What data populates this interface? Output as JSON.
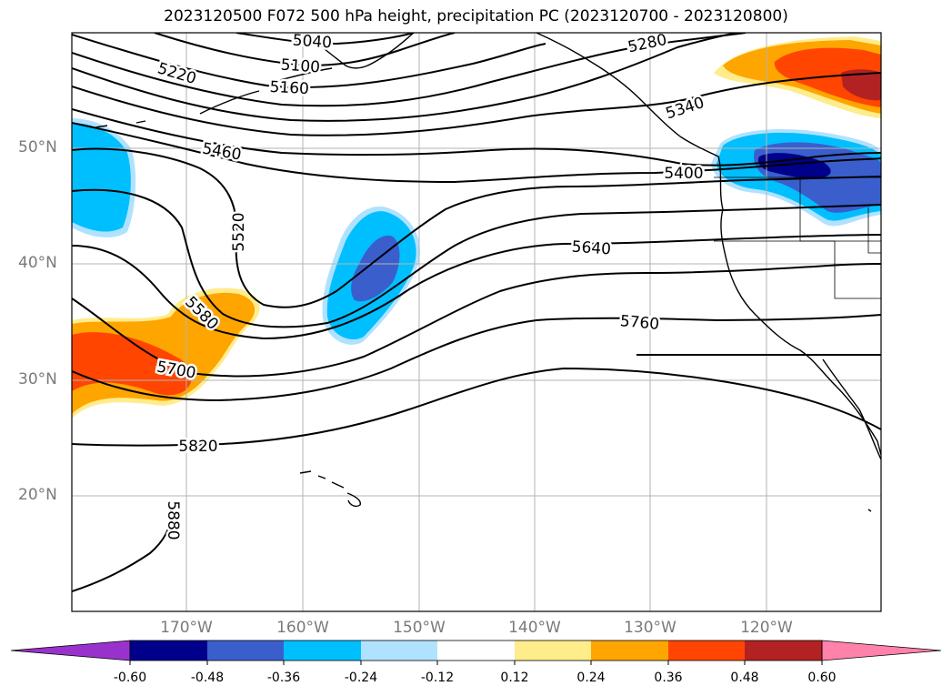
{
  "title": "2023120500 F072 500 hPa height, precipitation PC (2023120700 - 2023120800)",
  "lat_labels": [
    "50°N",
    "40°N",
    "30°N",
    "20°N"
  ],
  "lon_labels": [
    "170°W",
    "160°W",
    "150°W",
    "140°W",
    "130°W",
    "120°W"
  ],
  "contour_labels": [
    "5040",
    "5100",
    "5160",
    "5220",
    "5280",
    "5340",
    "5400",
    "5460",
    "5520",
    "5580",
    "5640",
    "5700",
    "5760",
    "5820",
    "5880"
  ],
  "colorbar": {
    "ticks": [
      "-0.60",
      "-0.48",
      "-0.36",
      "-0.24",
      "-0.12",
      "0.12",
      "0.24",
      "0.36",
      "0.48",
      "0.60"
    ],
    "colors": [
      "#9932cc",
      "#00008b",
      "#3a5fcd",
      "#00bfff",
      "#b0e2ff",
      "#ffffff",
      "#ffec8b",
      "#ffa500",
      "#ff4500",
      "#b22222",
      "#ff82ab"
    ]
  },
  "shading": {
    "blue_dark": "#00008b",
    "blue_mid": "#3a5fcd",
    "blue_light": "#00bfff",
    "blue_pale": "#b0e2ff",
    "yellow": "#ffec8b",
    "orange": "#ffa500",
    "red_orange": "#ff4500",
    "dark_red": "#b22222"
  }
}
